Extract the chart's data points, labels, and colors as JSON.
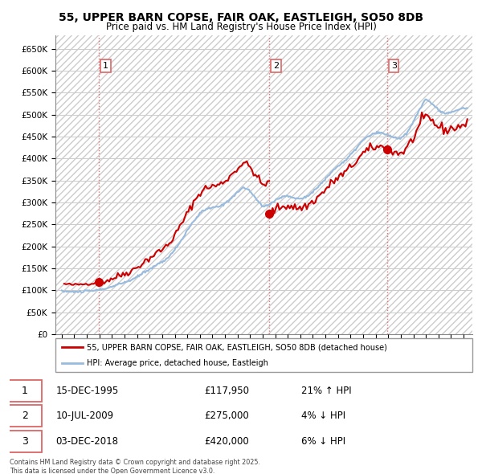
{
  "title_line1": "55, UPPER BARN COPSE, FAIR OAK, EASTLEIGH, SO50 8DB",
  "title_line2": "Price paid vs. HM Land Registry's House Price Index (HPI)",
  "property_label": "55, UPPER BARN COPSE, FAIR OAK, EASTLEIGH, SO50 8DB (detached house)",
  "hpi_label": "HPI: Average price, detached house, Eastleigh",
  "sale_dates": [
    "15-DEC-1995",
    "10-JUL-2009",
    "03-DEC-2018"
  ],
  "sale_prices": [
    117950,
    275000,
    420000
  ],
  "sale_prices_fmt": [
    "£117,950",
    "£275,000",
    "£420,000"
  ],
  "sale_hpi_pct": [
    "21% ↑ HPI",
    "4% ↓ HPI",
    "6% ↓ HPI"
  ],
  "sale_years": [
    1995.96,
    2009.52,
    2018.92
  ],
  "footnote": "Contains HM Land Registry data © Crown copyright and database right 2025.\nThis data is licensed under the Open Government Licence v3.0.",
  "property_color": "#cc0000",
  "hpi_color": "#99bbdd",
  "vline_color": "#dd6666",
  "marker_color": "#cc0000",
  "ylim": [
    0,
    680000
  ],
  "yticks": [
    0,
    50000,
    100000,
    150000,
    200000,
    250000,
    300000,
    350000,
    400000,
    450000,
    500000,
    550000,
    600000,
    650000
  ],
  "xlim_start": 1992.5,
  "xlim_end": 2025.7,
  "grid_color": "#cccccc",
  "hatch_color": "#cccccc"
}
